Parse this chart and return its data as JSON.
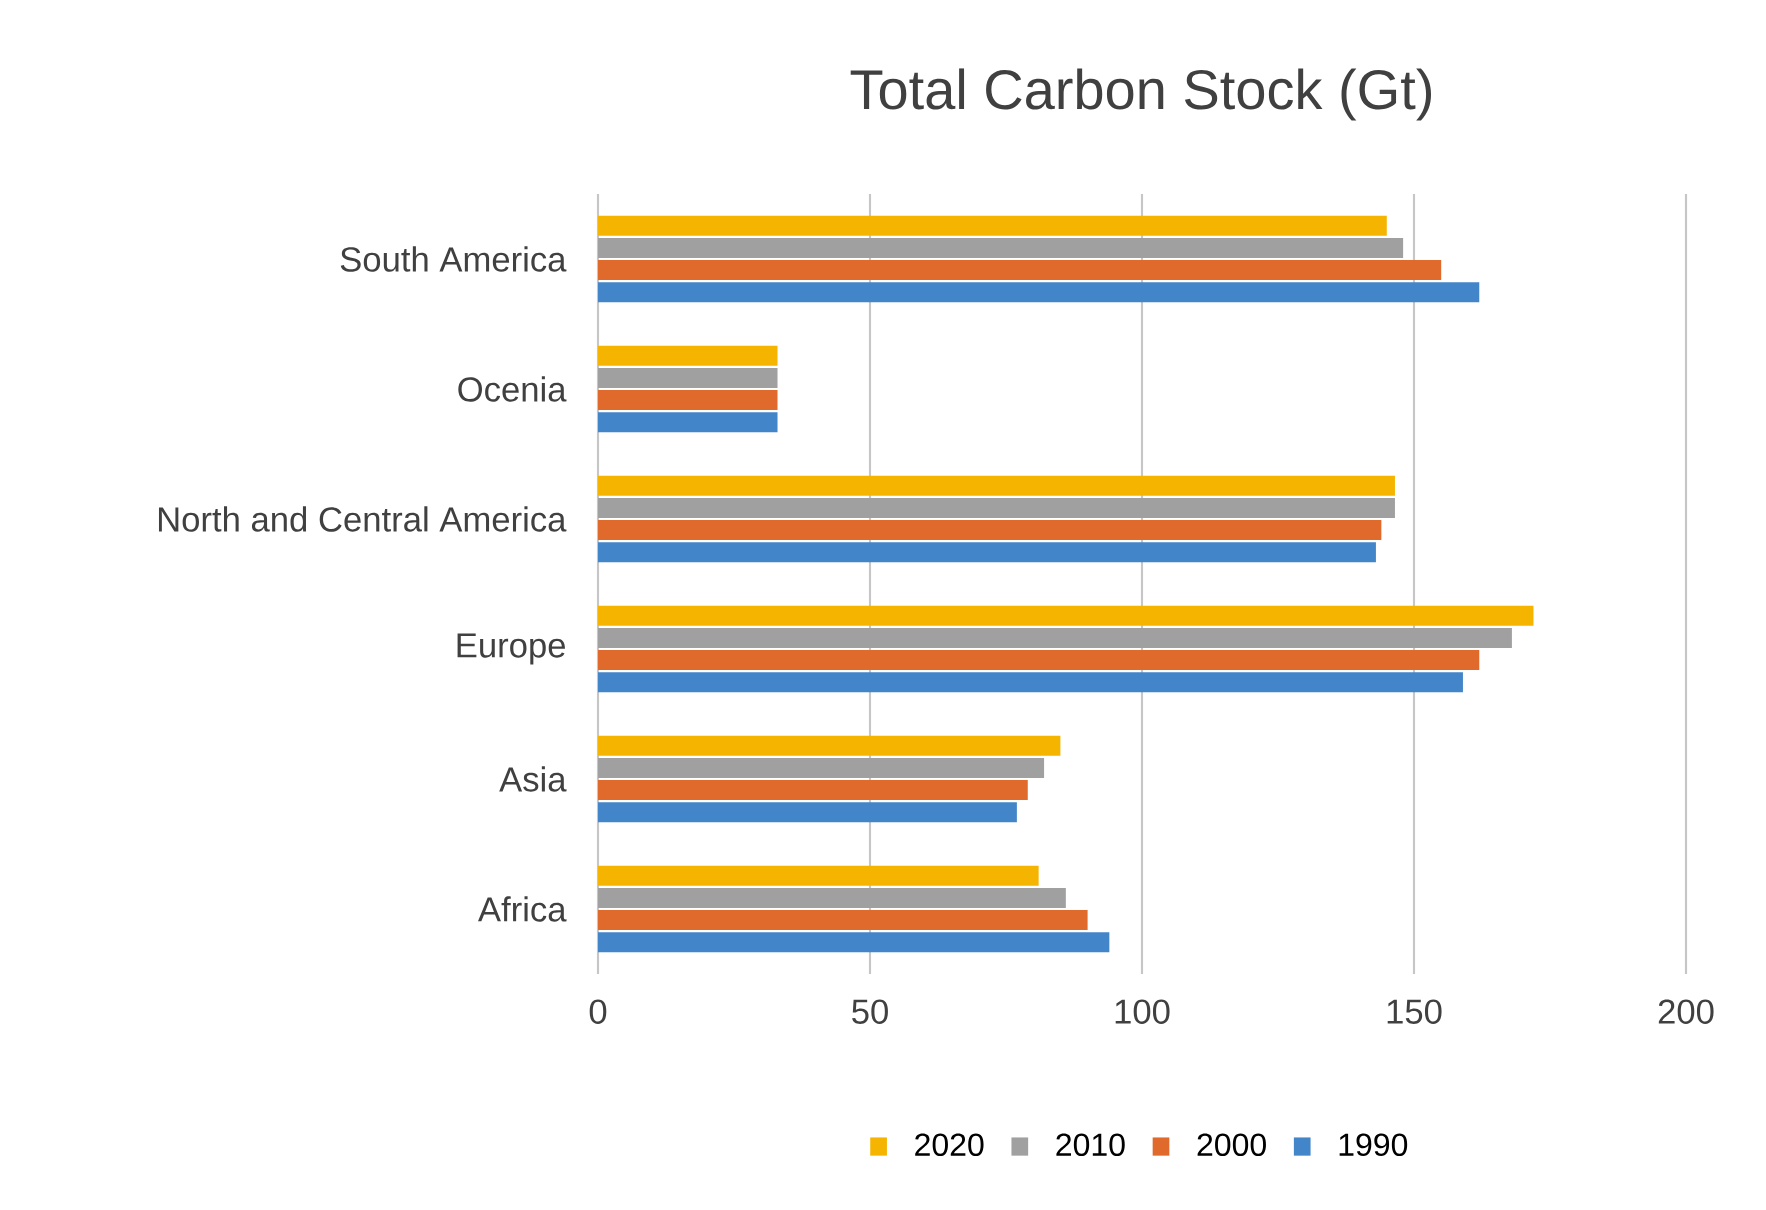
{
  "chart_data": {
    "type": "bar",
    "orientation": "horizontal",
    "title": "Total Carbon Stock (Gt)",
    "categories": [
      "South America",
      "Ocenia",
      "North and Central America",
      "Europe",
      "Asia",
      "Africa"
    ],
    "series": [
      {
        "name": "2020",
        "color": "#f5b400",
        "values": [
          145,
          33,
          146.5,
          172,
          85,
          81
        ]
      },
      {
        "name": "2010",
        "color": "#a0a0a0",
        "values": [
          148,
          33,
          146.5,
          168,
          82,
          86
        ]
      },
      {
        "name": "2000",
        "color": "#e06a2c",
        "values": [
          155,
          33,
          144,
          162,
          79,
          90
        ]
      },
      {
        "name": "1990",
        "color": "#4285c8",
        "values": [
          162,
          33,
          143,
          159,
          77,
          94
        ]
      }
    ],
    "xlim": [
      0,
      200
    ],
    "xticks": [
      0,
      50,
      100,
      150,
      200
    ],
    "grid": "x",
    "legend": "bottom"
  }
}
